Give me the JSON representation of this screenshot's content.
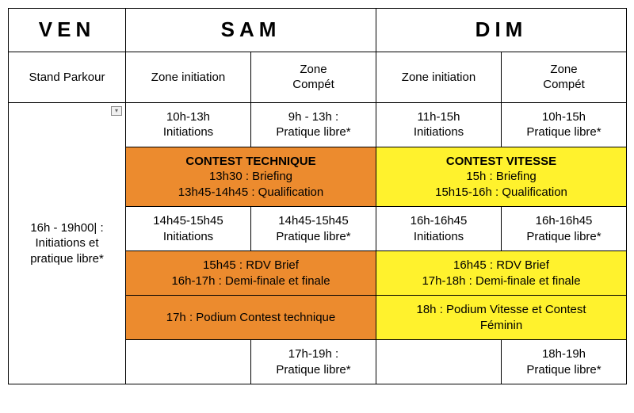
{
  "colors": {
    "orange": "#ec8b2e",
    "yellow": "#fff22d",
    "border": "#000000",
    "background": "#ffffff"
  },
  "header": {
    "ven": "VEN",
    "sam": "SAM",
    "dim": "DIM"
  },
  "subheader": {
    "ven": "Stand Parkour",
    "sam_init": "Zone initiation",
    "sam_compet": "Zone\nCompét",
    "dim_init": "Zone initiation",
    "dim_compet": "Zone\nCompét"
  },
  "ven_body": "16h - 19h00| :\nInitiations et\npratique libre*",
  "row1": {
    "sam_init": "10h-13h\nInitiations",
    "sam_compet": "9h - 13h :\nPratique libre*",
    "dim_init": "11h-15h\nInitiations",
    "dim_compet": "10h-15h\nPratique libre*"
  },
  "row2": {
    "sam_title": "CONTEST TECHNIQUE",
    "sam_lines": "13h30 : Briefing\n13h45-14h45 : Qualification",
    "dim_title": "CONTEST VITESSE",
    "dim_lines": "15h : Briefing\n15h15-16h : Qualification"
  },
  "row3": {
    "sam_init": "14h45-15h45\nInitiations",
    "sam_compet": "14h45-15h45\nPratique libre*",
    "dim_init": "16h-16h45\nInitiations",
    "dim_compet": "16h-16h45\nPratique libre*"
  },
  "row4": {
    "sam": "15h45 : RDV Brief\n16h-17h : Demi-finale et finale",
    "dim": "16h45 : RDV Brief\n17h-18h : Demi-finale et finale"
  },
  "row5": {
    "sam": "17h : Podium Contest technique",
    "dim": "18h : Podium Vitesse et Contest\nFéminin"
  },
  "row6": {
    "sam_init": "",
    "sam_compet": "17h-19h :\nPratique libre*",
    "dim_init": "",
    "dim_compet": "18h-19h\nPratique libre*"
  }
}
